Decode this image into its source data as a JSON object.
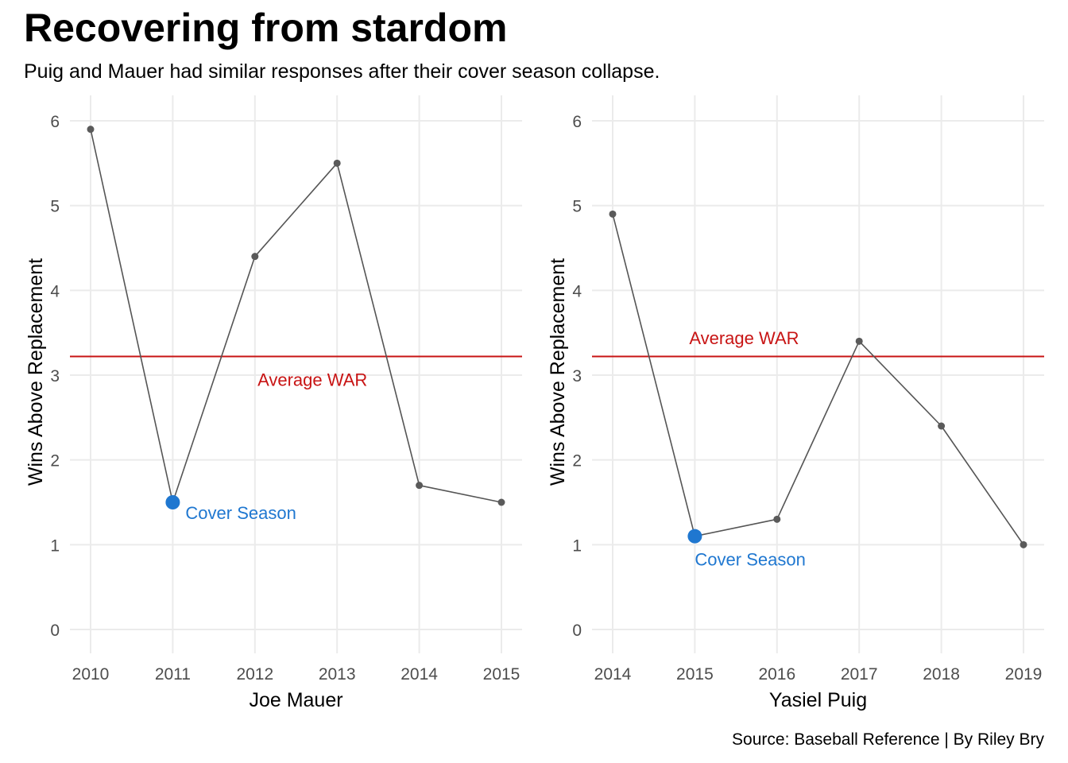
{
  "title": "Recovering from stardom",
  "subtitle": "Puig and Mauer had similar responses after their cover season collapse.",
  "caption": "Source: Baseball Reference | By Riley Bry",
  "colors": {
    "line": "#555555",
    "point": "#5a5a5a",
    "highlight": "#1f77d0",
    "average": "#c81414",
    "grid": "#ebebeb",
    "tick_text": "#4d4d4d"
  },
  "chart_data": [
    {
      "type": "line",
      "xlabel": "Joe Mauer",
      "ylabel": "Wins Above Replacement",
      "x": [
        2010,
        2011,
        2012,
        2013,
        2014,
        2015
      ],
      "values": [
        5.9,
        1.5,
        4.4,
        5.5,
        1.7,
        1.5
      ],
      "ylim": [
        0,
        6
      ],
      "y_ticks": [
        "0",
        "1",
        "2",
        "3",
        "4",
        "5",
        "6"
      ],
      "x_ticks": [
        "2010",
        "2011",
        "2012",
        "2013",
        "2014",
        "2015"
      ],
      "highlight": {
        "x": 2011,
        "y": 1.5,
        "label": "Cover Season"
      },
      "average": {
        "y": 3.22,
        "label": "Average WAR",
        "label_x": 2012.7,
        "label_y": 2.95
      },
      "grid": true,
      "legend": "none"
    },
    {
      "type": "line",
      "xlabel": "Yasiel Puig",
      "ylabel": "Wins Above Replacement",
      "x": [
        2014,
        2015,
        2016,
        2017,
        2018,
        2019
      ],
      "values": [
        4.9,
        1.1,
        1.3,
        3.4,
        2.4,
        1.0
      ],
      "ylim": [
        0,
        6
      ],
      "y_ticks": [
        "0",
        "1",
        "2",
        "3",
        "4",
        "5",
        "6"
      ],
      "x_ticks": [
        "2014",
        "2015",
        "2016",
        "2017",
        "2018",
        "2019"
      ],
      "highlight": {
        "x": 2015,
        "y": 1.1,
        "label": "Cover Season"
      },
      "average": {
        "y": 3.22,
        "label": "Average WAR",
        "label_x": 2015.6,
        "label_y": 3.44
      },
      "grid": true,
      "legend": "none"
    }
  ]
}
